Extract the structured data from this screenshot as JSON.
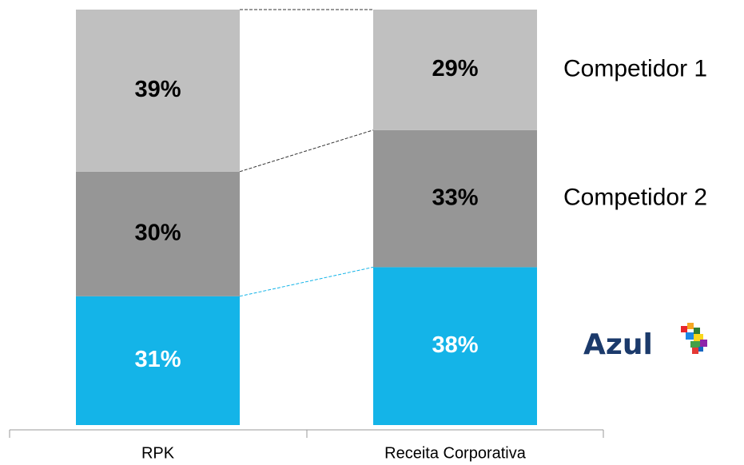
{
  "chart_data": {
    "type": "stacked_bar",
    "categories": [
      "RPK",
      "Receita Corporativa"
    ],
    "ylim": [
      0,
      100
    ],
    "series": [
      {
        "name": "Azul",
        "color": "#14b4e8",
        "values": [
          31,
          38
        ],
        "value_labels": [
          "31%",
          "38%"
        ]
      },
      {
        "name": "Competidor 2",
        "color": "#969696",
        "values": [
          30,
          33
        ],
        "value_labels": [
          "30%",
          "33%"
        ]
      },
      {
        "name": "Competidor 1",
        "color": "#c0c0c0",
        "values": [
          39,
          29
        ],
        "value_labels": [
          "39%",
          "29%"
        ]
      }
    ]
  }
}
